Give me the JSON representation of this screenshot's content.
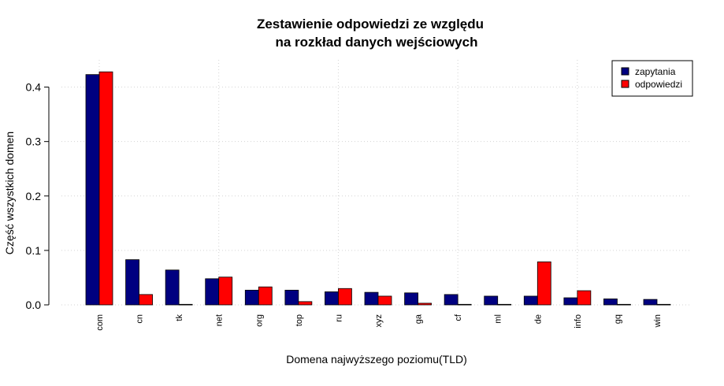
{
  "chart_data": {
    "type": "bar",
    "title": [
      "Zestawienie odpowiedzi ze względu",
      "na rozkład danych wejściowych"
    ],
    "xlabel": "Domena najwyższego poziomu(TLD)",
    "ylabel": "Część wszystkich domen",
    "categories": [
      "com",
      "cn",
      "tk",
      "net",
      "org",
      "top",
      "ru",
      "xyz",
      "ga",
      "cf",
      "ml",
      "de",
      "info",
      "gq",
      "win"
    ],
    "series": [
      {
        "name": "zapytania",
        "color": "#000080",
        "values": [
          0.423,
          0.083,
          0.064,
          0.048,
          0.027,
          0.027,
          0.024,
          0.023,
          0.022,
          0.019,
          0.016,
          0.016,
          0.013,
          0.011,
          0.01
        ]
      },
      {
        "name": "odpowiedzi",
        "color": "#ff0000",
        "values": [
          0.428,
          0.019,
          0.001,
          0.051,
          0.033,
          0.006,
          0.03,
          0.016,
          0.003,
          0.001,
          0.001,
          0.079,
          0.026,
          0.001,
          0.001
        ]
      }
    ],
    "ylim": [
      0,
      0.45
    ],
    "yticks": [
      0.0,
      0.1,
      0.2,
      0.3,
      0.4
    ],
    "ytick_labels": [
      "0.0",
      "0.1",
      "0.2",
      "0.3",
      "0.4"
    ],
    "grid": true,
    "legend_position": "top-right"
  }
}
